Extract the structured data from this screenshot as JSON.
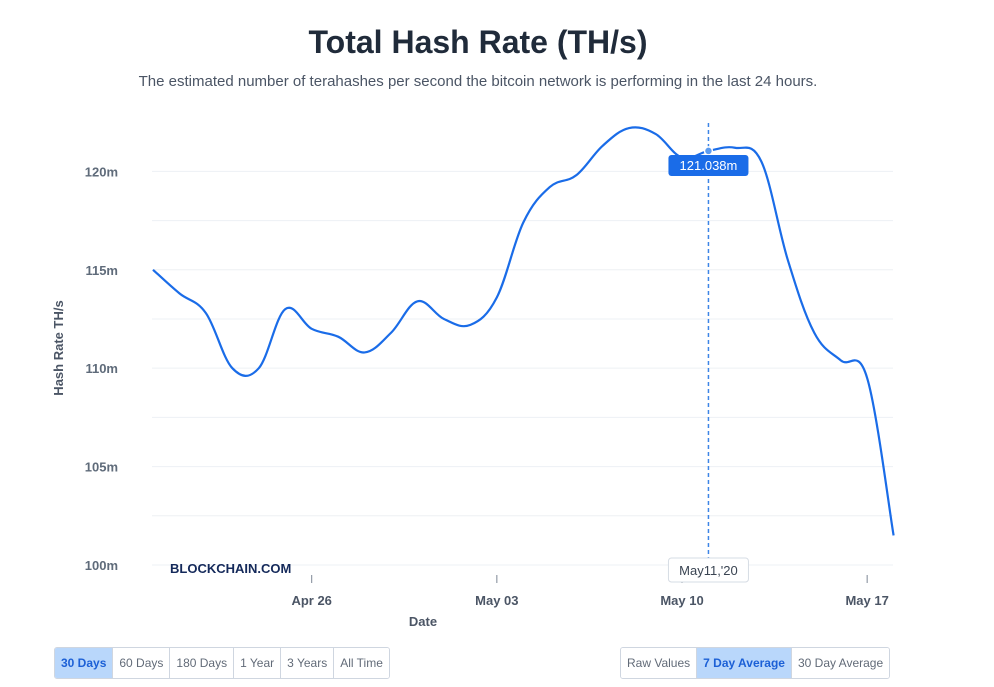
{
  "title": "Total Hash Rate (TH/s)",
  "subtitle": "The estimated number of terahashes per second the bitcoin network is performing in the last 24 hours.",
  "watermark": "BLOCKCHAIN.COM",
  "range_buttons": [
    {
      "label": "30 Days",
      "active": true
    },
    {
      "label": "60 Days",
      "active": false
    },
    {
      "label": "180 Days",
      "active": false
    },
    {
      "label": "1 Year",
      "active": false
    },
    {
      "label": "3 Years",
      "active": false
    },
    {
      "label": "All Time",
      "active": false
    }
  ],
  "avg_buttons": [
    {
      "label": "Raw Values",
      "active": false
    },
    {
      "label": "7 Day Average",
      "active": true
    },
    {
      "label": "30 Day Average",
      "active": false
    }
  ],
  "chart_data": {
    "type": "line",
    "title": "Total Hash Rate (TH/s)",
    "xlabel": "Date",
    "ylabel": "Hash Rate TH/s",
    "ylim": [
      100,
      122
    ],
    "yticks": [
      100,
      105,
      110,
      115,
      120
    ],
    "ytick_labels": [
      "100m",
      "105m",
      "110m",
      "115m",
      "120m"
    ],
    "xticks": [
      "Apr 26",
      "May 03",
      "May 10",
      "May 17"
    ],
    "grid": true,
    "line_color": "#1a6ce8",
    "series": [
      {
        "x": [
          "Apr 20",
          "Apr 21",
          "Apr 22",
          "Apr 23",
          "Apr 24",
          "Apr 25",
          "Apr 26",
          "Apr 27",
          "Apr 28",
          "Apr 29",
          "Apr 30",
          "May 01",
          "May 02",
          "May 03",
          "May 04",
          "May 05",
          "May 06",
          "May 07",
          "May 08",
          "May 09",
          "May 10",
          "May 11",
          "May 12",
          "May 13",
          "May 14",
          "May 15",
          "May 16",
          "May 17",
          "May 18"
        ],
        "y": [
          115.0,
          113.8,
          112.8,
          110.0,
          110.0,
          113.0,
          112.0,
          111.6,
          110.8,
          111.8,
          113.4,
          112.5,
          112.2,
          113.6,
          117.4,
          119.2,
          119.8,
          121.3,
          122.2,
          121.9,
          120.7,
          121.038,
          121.2,
          120.5,
          115.5,
          111.8,
          110.4,
          109.5,
          101.5
        ]
      }
    ],
    "hover": {
      "x": "May11,'20",
      "y_label": "121.038m"
    }
  }
}
